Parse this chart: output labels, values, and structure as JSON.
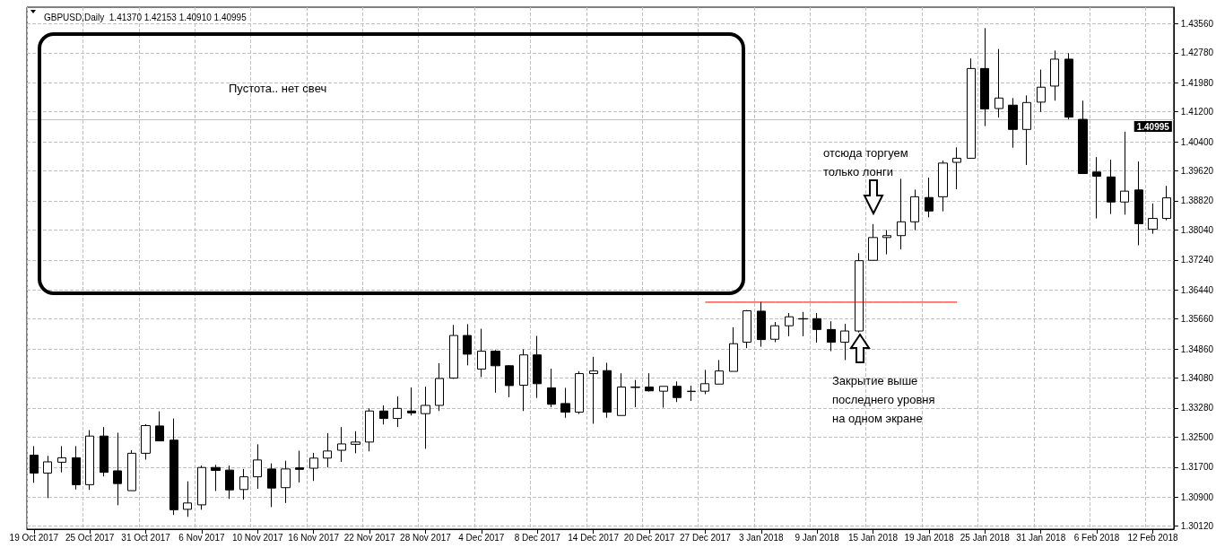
{
  "chart_data": {
    "type": "candlestick",
    "title": "GBPUSD,Daily  1.41370 1.42153 1.40910 1.40995",
    "categories": [
      "19 Oct 2017",
      null,
      null,
      null,
      "25 Oct 2017",
      null,
      null,
      null,
      "31 Oct 2017",
      null,
      null,
      null,
      "6 Nov 2017",
      null,
      null,
      null,
      "10 Nov 2017",
      null,
      null,
      null,
      "16 Nov 2017",
      null,
      null,
      null,
      "22 Nov 2017",
      null,
      null,
      null,
      "28 Nov 2017",
      null,
      null,
      null,
      "4 Dec 2017",
      null,
      null,
      null,
      "8 Dec 2017",
      null,
      null,
      null,
      "14 Dec 2017",
      null,
      null,
      null,
      "20 Dec 2017",
      null,
      null,
      null,
      "27 Dec 2017",
      null,
      null,
      null,
      "3 Jan 2018",
      null,
      null,
      null,
      "9 Jan 2018",
      null,
      null,
      null,
      "15 Jan 2018",
      null,
      null,
      null,
      "19 Jan 2018",
      null,
      null,
      null,
      "25 Jan 2018",
      null,
      null,
      null,
      "31 Jan 2018",
      null,
      null,
      null,
      "6 Feb 2018",
      null,
      null,
      null,
      "12 Feb 2018",
      null
    ],
    "ohlc": [
      [
        1.3202,
        1.3226,
        1.3128,
        1.3154
      ],
      [
        1.3154,
        1.32,
        1.3087,
        1.3184
      ],
      [
        1.3183,
        1.3226,
        1.3156,
        1.3195
      ],
      [
        1.3195,
        1.3226,
        1.311,
        1.3123
      ],
      [
        1.3123,
        1.3269,
        1.3109,
        1.3253
      ],
      [
        1.3253,
        1.3277,
        1.3145,
        1.3156
      ],
      [
        1.316,
        1.3262,
        1.3068,
        1.3126
      ],
      [
        1.3107,
        1.3215,
        1.3107,
        1.3207
      ],
      [
        1.3207,
        1.3285,
        1.319,
        1.3281
      ],
      [
        1.328,
        1.3319,
        1.324,
        1.324
      ],
      [
        1.3242,
        1.33,
        1.3042,
        1.3056
      ],
      [
        1.3057,
        1.3132,
        1.3037,
        1.3074
      ],
      [
        1.3069,
        1.3174,
        1.3056,
        1.3169
      ],
      [
        1.3169,
        1.3176,
        1.3106,
        1.3161
      ],
      [
        1.3162,
        1.3174,
        1.3085,
        1.3109
      ],
      [
        1.311,
        1.3165,
        1.3083,
        1.3144
      ],
      [
        1.3144,
        1.3231,
        1.3112,
        1.3189
      ],
      [
        1.3165,
        1.318,
        1.3063,
        1.3114
      ],
      [
        1.3115,
        1.3187,
        1.3074,
        1.3165
      ],
      [
        1.3168,
        1.3214,
        1.3129,
        1.3164
      ],
      [
        1.3167,
        1.3208,
        1.3133,
        1.3194
      ],
      [
        1.3194,
        1.3261,
        1.3169,
        1.3213
      ],
      [
        1.3215,
        1.3277,
        1.3184,
        1.3232
      ],
      [
        1.3231,
        1.3266,
        1.3207,
        1.3237
      ],
      [
        1.3237,
        1.3327,
        1.3212,
        1.332
      ],
      [
        1.332,
        1.3335,
        1.3284,
        1.33
      ],
      [
        1.33,
        1.3359,
        1.3277,
        1.3327
      ],
      [
        1.332,
        1.3383,
        1.3308,
        1.3315
      ],
      [
        1.3313,
        1.3385,
        1.3219,
        1.3335
      ],
      [
        1.3335,
        1.3448,
        1.332,
        1.3407
      ],
      [
        1.3408,
        1.355,
        1.3406,
        1.3522
      ],
      [
        1.3522,
        1.3552,
        1.3442,
        1.3472
      ],
      [
        1.3432,
        1.354,
        1.3411,
        1.348
      ],
      [
        1.348,
        1.3483,
        1.3369,
        1.3441
      ],
      [
        1.3441,
        1.3443,
        1.3357,
        1.3388
      ],
      [
        1.3389,
        1.3485,
        1.332,
        1.347
      ],
      [
        1.347,
        1.3521,
        1.3355,
        1.3393
      ],
      [
        1.3382,
        1.3433,
        1.333,
        1.3338
      ],
      [
        1.334,
        1.3382,
        1.3302,
        1.3317
      ],
      [
        1.3317,
        1.3426,
        1.3312,
        1.342
      ],
      [
        1.342,
        1.3465,
        1.3286,
        1.3427
      ],
      [
        1.3428,
        1.3449,
        1.3302,
        1.3317
      ],
      [
        1.3308,
        1.3421,
        1.3308,
        1.3384
      ],
      [
        1.3383,
        1.3403,
        1.333,
        1.3384
      ],
      [
        1.3384,
        1.3421,
        1.3372,
        1.3374
      ],
      [
        1.3373,
        1.3386,
        1.3329,
        1.3386
      ],
      [
        1.3386,
        1.3399,
        1.3344,
        1.3356
      ],
      [
        1.3372,
        1.3388,
        1.3347,
        1.3373
      ],
      [
        1.3373,
        1.343,
        1.3365,
        1.3393
      ],
      [
        1.3392,
        1.3456,
        1.3392,
        1.3427
      ],
      [
        1.3426,
        1.3544,
        1.3426,
        1.35
      ],
      [
        1.3504,
        1.359,
        1.3488,
        1.3588
      ],
      [
        1.3587,
        1.3612,
        1.3492,
        1.3511
      ],
      [
        1.3512,
        1.3558,
        1.3504,
        1.3548
      ],
      [
        1.3548,
        1.3582,
        1.352,
        1.3572
      ],
      [
        1.3567,
        1.3585,
        1.352,
        1.3566
      ],
      [
        1.3567,
        1.3582,
        1.3503,
        1.3538
      ],
      [
        1.3538,
        1.356,
        1.348,
        1.3504
      ],
      [
        1.3504,
        1.3553,
        1.3456,
        1.3534
      ],
      [
        1.3534,
        1.3742,
        1.353,
        1.3722
      ],
      [
        1.3723,
        1.382,
        1.3723,
        1.3784
      ],
      [
        1.3784,
        1.3804,
        1.3739,
        1.3789
      ],
      [
        1.3789,
        1.3941,
        1.3752,
        1.3826
      ],
      [
        1.3826,
        1.3912,
        1.3804,
        1.3893
      ],
      [
        1.3891,
        1.3944,
        1.3838,
        1.3855
      ],
      [
        1.3893,
        1.399,
        1.3854,
        1.3983
      ],
      [
        1.3985,
        1.4025,
        1.3913,
        1.3996
      ],
      [
        1.3996,
        1.4263,
        1.3996,
        1.4236
      ],
      [
        1.4236,
        1.4344,
        1.4082,
        1.4128
      ],
      [
        1.4129,
        1.4288,
        1.4105,
        1.4157
      ],
      [
        1.4138,
        1.4157,
        1.4024,
        1.4073
      ],
      [
        1.4073,
        1.4164,
        1.3978,
        1.4145
      ],
      [
        1.4146,
        1.4233,
        1.412,
        1.4186
      ],
      [
        1.4189,
        1.4284,
        1.415,
        1.4261
      ],
      [
        1.4261,
        1.4277,
        1.41,
        1.4106
      ],
      [
        1.41,
        1.415,
        1.3955,
        1.3955
      ],
      [
        1.3959,
        1.3999,
        1.3835,
        1.3948
      ],
      [
        1.3946,
        1.3992,
        1.3847,
        1.3879
      ],
      [
        1.3879,
        1.4067,
        1.3845,
        1.3908
      ],
      [
        1.3911,
        1.3987,
        1.3763,
        1.3821
      ],
      [
        1.3806,
        1.3875,
        1.3794,
        1.3835
      ],
      [
        1.3835,
        1.3922,
        1.383,
        1.389
      ]
    ],
    "series": [
      {
        "type": "line",
        "color": "#ff0000",
        "values": [
          null,
          null,
          null,
          null,
          null,
          null,
          null,
          null,
          null,
          null,
          null,
          null,
          null,
          null,
          null,
          null,
          null,
          null,
          null,
          null,
          null,
          null,
          null,
          null,
          null,
          null,
          null,
          null,
          null,
          null,
          null,
          null,
          null,
          null,
          null,
          null,
          null,
          null,
          null,
          null,
          null,
          null,
          null,
          null,
          null,
          null,
          null,
          null,
          1.3611,
          1.3611,
          1.3611,
          1.3611,
          1.3611,
          1.3611,
          1.3611,
          1.3611,
          1.3611,
          1.3611,
          1.3611,
          1.3611,
          1.3611,
          1.3611,
          1.3611,
          1.3611,
          1.3611,
          1.3611,
          1.3611,
          null,
          null,
          null,
          null,
          null,
          null,
          null,
          null,
          null,
          null,
          null,
          null,
          null,
          null,
          null
        ]
      }
    ],
    "ylim": [
      1.3004,
      1.44
    ],
    "yticks": [
      {
        "value": 1.3012,
        "label": "1.30120"
      },
      {
        "value": 1.309,
        "label": "1.30900"
      },
      {
        "value": 1.317,
        "label": "1.31700"
      },
      {
        "value": 1.325,
        "label": "1.32500"
      },
      {
        "value": 1.3328,
        "label": "1.33280"
      },
      {
        "value": 1.3408,
        "label": "1.34080"
      },
      {
        "value": 1.3486,
        "label": "1.34860"
      },
      {
        "value": 1.3566,
        "label": "1.35660"
      },
      {
        "value": 1.3644,
        "label": "1.36440"
      },
      {
        "value": 1.3724,
        "label": "1.37240"
      },
      {
        "value": 1.3804,
        "label": "1.38040"
      },
      {
        "value": 1.3882,
        "label": "1.38820"
      },
      {
        "value": 1.3962,
        "label": "1.39620"
      },
      {
        "value": 1.404,
        "label": "1.40400"
      },
      {
        "value": 1.412,
        "label": "1.41200"
      },
      {
        "value": 1.4198,
        "label": "1.41980"
      },
      {
        "value": 1.4278,
        "label": "1.42780"
      },
      {
        "value": 1.4356,
        "label": "1.43560"
      }
    ],
    "ref_lines": [
      {
        "axis": "y",
        "value": 1.40995,
        "label": "1.40995",
        "color": "#c0c0c0"
      }
    ],
    "annotations": [
      "Пустота.. нет свеч",
      "отсюда торгуем только лонги",
      "Закрытие выше последнего уровня на одном экране"
    ],
    "grid": true
  }
}
